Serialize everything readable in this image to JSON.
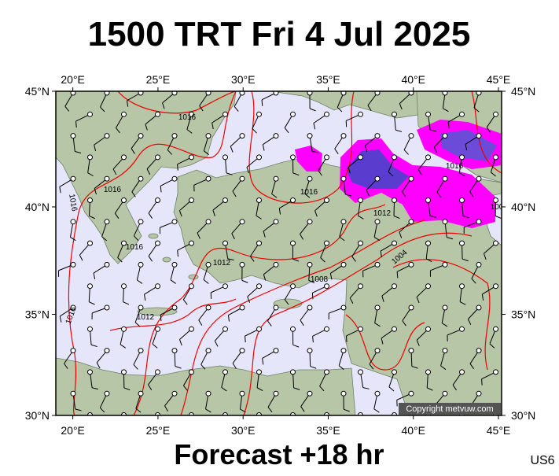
{
  "header": {
    "title": "1500 TRT Fri 4 Jul 2025"
  },
  "footer": {
    "forecast": "Forecast +18 hr",
    "code": "US6"
  },
  "map": {
    "lon_ticks": [
      {
        "value": 20,
        "label": "20°E"
      },
      {
        "value": 25,
        "label": "25°E"
      },
      {
        "value": 30,
        "label": "30°E"
      },
      {
        "value": 35,
        "label": "35°E"
      },
      {
        "value": 40,
        "label": "40°E"
      },
      {
        "value": 45,
        "label": "45°E"
      }
    ],
    "lat_ticks": [
      {
        "value": 45,
        "label": "45°N"
      },
      {
        "value": 40,
        "label": "40°N"
      },
      {
        "value": 35,
        "label": "35°N"
      },
      {
        "value": 30,
        "label": "30°N"
      }
    ],
    "contour_labels": [
      "1016",
      "1016",
      "1016",
      "1016",
      "1016",
      "1016",
      "1016",
      "1012",
      "1012",
      "1012",
      "1008",
      "1004",
      "100"
    ],
    "copyright": "Copyright metvuw.com"
  }
}
